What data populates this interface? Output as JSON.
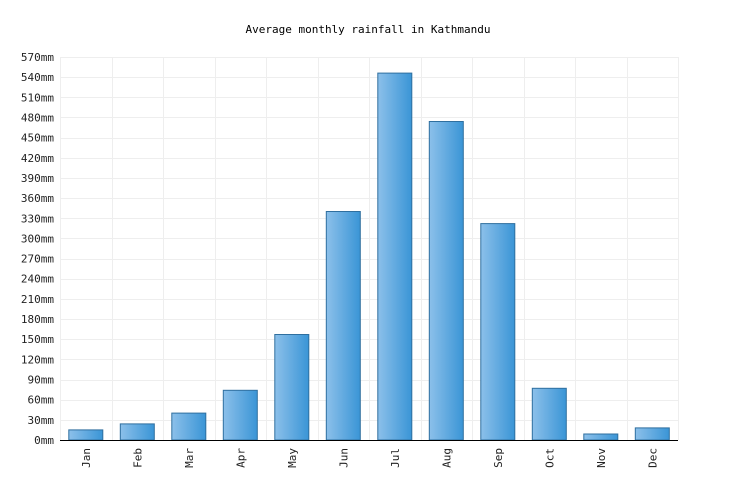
{
  "chart_data": {
    "type": "bar",
    "title": "Average monthly rainfall in Kathmandu",
    "categories": [
      "Jan",
      "Feb",
      "Mar",
      "Apr",
      "May",
      "Jun",
      "Jul",
      "Aug",
      "Sep",
      "Oct",
      "Nov",
      "Dec"
    ],
    "values": [
      15,
      24,
      40,
      74,
      157,
      340,
      546,
      474,
      322,
      77,
      9,
      18
    ],
    "xlabel": "",
    "ylabel": "",
    "ylim": [
      0,
      570
    ],
    "ytick_step": 30,
    "ytick_labels": [
      "0mm",
      "30mm",
      "60mm",
      "90mm",
      "120mm",
      "150mm",
      "180mm",
      "210mm",
      "240mm",
      "270mm",
      "300mm",
      "330mm",
      "360mm",
      "390mm",
      "420mm",
      "450mm",
      "480mm",
      "510mm",
      "540mm",
      "570mm"
    ],
    "grid": true,
    "colors": {
      "bar_light": "#8cc0ea",
      "bar_dark": "#3a95d6",
      "bar_border": "#2f6f9f",
      "grid": "#eeeeee"
    }
  }
}
